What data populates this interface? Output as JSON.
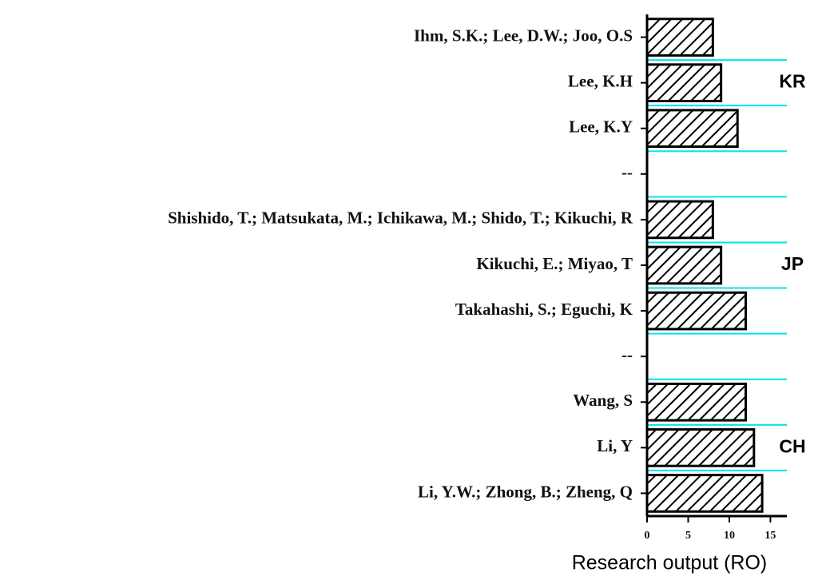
{
  "chart_data": {
    "type": "barh",
    "categories": [
      "Ihm, S.K.; Lee, D.W.; Joo, O.S",
      "Lee, K.H",
      "Lee, K.Y",
      "--",
      "Shishido, T.; Matsukata, M.; Ichikawa, M.; Shido, T.; Kikuchi, R",
      "Kikuchi, E.; Miyao, T",
      "Takahashi, S.; Eguchi, K",
      "--",
      "Wang, S",
      "Li, Y",
      "Li, Y.W.; Zhong, B.; Zheng, Q"
    ],
    "values": [
      8,
      9,
      11,
      null,
      8,
      9,
      12,
      null,
      12,
      13,
      14
    ],
    "color": "#000000",
    "hatch": true,
    "xlabel": "Research output (RO)",
    "xlim": [
      0,
      17
    ],
    "xticks": [
      0,
      5,
      10,
      15
    ],
    "annotations": [
      "KR",
      "JP",
      "CH"
    ],
    "separator_color": "#00e5f0"
  }
}
